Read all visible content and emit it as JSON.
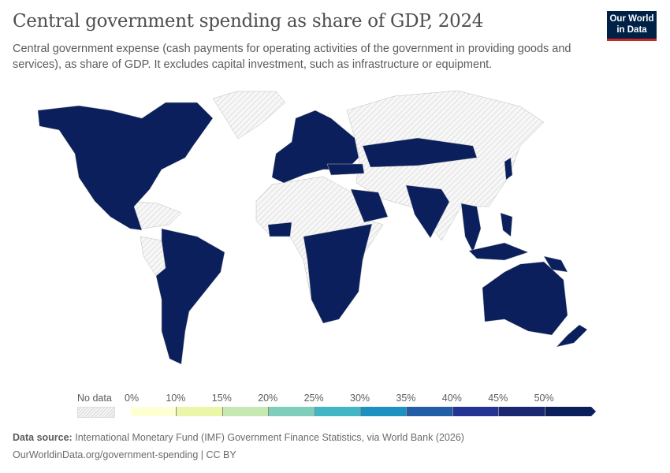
{
  "header": {
    "title": "Central government spending as share of GDP, 2024",
    "subtitle": "Central government expense (cash payments for operating activities of the government in providing goods and services), as share of GDP. It excludes capital investment, such as infrastructure or equipment.",
    "logo_text": "Our World in Data"
  },
  "legend": {
    "no_data_label": "No data",
    "ticks": [
      "0%",
      "10%",
      "15%",
      "20%",
      "25%",
      "30%",
      "35%",
      "40%",
      "45%",
      "50%"
    ],
    "bins": [
      {
        "range": "0–10%",
        "color": "#ffffd4"
      },
      {
        "range": "10–15%",
        "color": "#ebf6a8"
      },
      {
        "range": "15–20%",
        "color": "#c6e9b4"
      },
      {
        "range": "20–25%",
        "color": "#7fcdbb"
      },
      {
        "range": "25–30%",
        "color": "#41b6c4"
      },
      {
        "range": "30–35%",
        "color": "#1d91c0"
      },
      {
        "range": "35–40%",
        "color": "#225ea8"
      },
      {
        "range": "40–45%",
        "color": "#253494"
      },
      {
        "range": "45–50%",
        "color": "#1a2873"
      },
      {
        "range": ">50%",
        "color": "#0a1f5c"
      }
    ]
  },
  "colors": {
    "data_fill": "#0a1f5c",
    "no_data": "#e6e6e6"
  },
  "footer": {
    "source_label": "Data source:",
    "source_text": "International Monetary Fund (IMF) Government Finance Statistics, via World Bank (2026)",
    "url_text": "OurWorldinData.org/government-spending | CC BY"
  }
}
